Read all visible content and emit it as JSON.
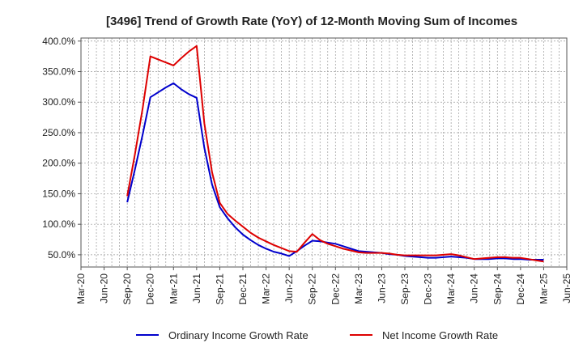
{
  "chart_data": {
    "type": "line",
    "title": "[3496]  Trend of Growth Rate (YoY) of 12-Month Moving Sum of Incomes",
    "xlabel": "",
    "ylabel": "",
    "x_ticks": [
      "Mar-20",
      "Jun-20",
      "Sep-20",
      "Dec-20",
      "Mar-21",
      "Jun-21",
      "Sep-21",
      "Dec-21",
      "Mar-22",
      "Jun-22",
      "Sep-22",
      "Dec-22",
      "Mar-23",
      "Jun-23",
      "Sep-23",
      "Dec-23",
      "Mar-24",
      "Jun-24",
      "Sep-24",
      "Dec-24",
      "Mar-25",
      "Jun-25"
    ],
    "y_ticks": [
      "50.0%",
      "100.0%",
      "150.0%",
      "200.0%",
      "250.0%",
      "300.0%",
      "350.0%",
      "400.0%"
    ],
    "y_tick_values": [
      50,
      100,
      150,
      200,
      250,
      300,
      350,
      400
    ],
    "ylim": [
      30,
      405
    ],
    "grid": true,
    "legend_position": "bottom",
    "x": [
      "Sep-20",
      "Oct-20",
      "Nov-20",
      "Dec-20",
      "Jan-21",
      "Feb-21",
      "Mar-21",
      "Apr-21",
      "May-21",
      "Jun-21",
      "Jul-21",
      "Aug-21",
      "Sep-21",
      "Oct-21",
      "Nov-21",
      "Dec-21",
      "Jan-22",
      "Feb-22",
      "Mar-22",
      "Apr-22",
      "May-22",
      "Jun-22",
      "Jul-22",
      "Aug-22",
      "Sep-22",
      "Oct-22",
      "Nov-22",
      "Dec-22",
      "Jan-23",
      "Feb-23",
      "Mar-23",
      "Apr-23",
      "May-23",
      "Jun-23",
      "Jul-23",
      "Aug-23",
      "Sep-23",
      "Oct-23",
      "Nov-23",
      "Dec-23",
      "Jan-24",
      "Feb-24",
      "Mar-24",
      "Apr-24",
      "May-24",
      "Jun-24",
      "Jul-24",
      "Aug-24",
      "Sep-24",
      "Oct-24",
      "Nov-24",
      "Dec-24",
      "Jan-25",
      "Feb-25",
      "Mar-25"
    ],
    "series": [
      {
        "name": "Ordinary Income Growth Rate",
        "color": "#0000cc",
        "values": [
          136,
          190,
          247,
          308,
          316,
          324,
          331,
          321,
          313,
          307,
          225,
          165,
          128,
          110,
          95,
          83,
          74,
          66,
          60,
          55,
          52,
          48,
          56,
          65,
          73,
          72,
          70,
          68,
          64,
          60,
          56,
          55,
          54,
          53,
          51,
          50,
          48,
          47,
          46,
          45,
          45,
          46,
          47,
          46,
          45,
          43,
          43,
          43,
          44,
          44,
          43,
          43,
          42,
          42,
          42
        ]
      },
      {
        "name": "Net Income Growth Rate",
        "color": "#dd0000",
        "values": [
          146,
          215,
          290,
          375,
          370,
          365,
          360,
          372,
          383,
          392,
          265,
          185,
          135,
          117,
          106,
          96,
          86,
          78,
          72,
          66,
          61,
          56,
          55,
          70,
          84,
          74,
          68,
          64,
          60,
          57,
          54,
          53,
          53,
          53,
          52,
          50,
          49,
          49,
          49,
          49,
          49,
          50,
          51,
          49,
          46,
          43,
          44,
          45,
          46,
          46,
          45,
          45,
          43,
          41,
          39
        ]
      }
    ]
  }
}
